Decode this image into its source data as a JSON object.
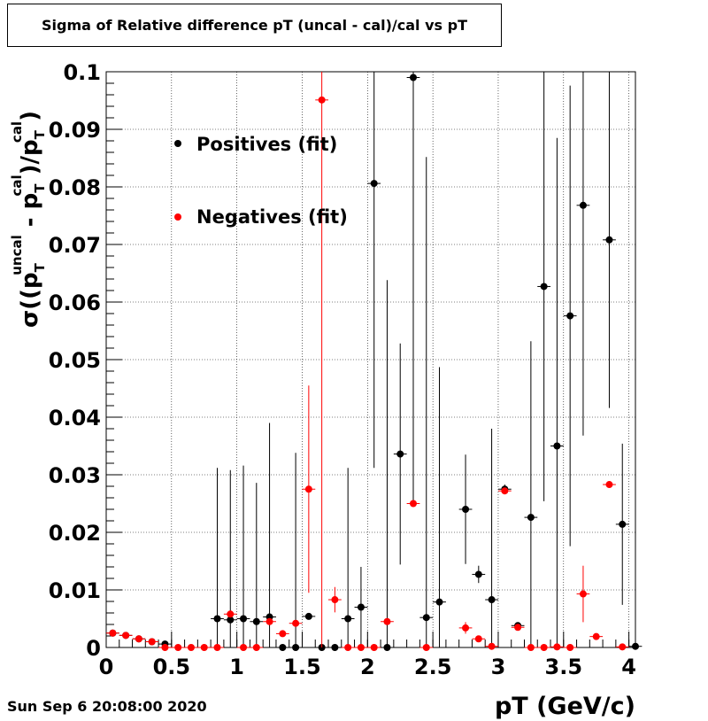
{
  "title": "Sigma of Relative difference pT (uncal - cal)/cal vs pT",
  "timestamp": "Sun Sep  6 20:08:00 2020",
  "colors": {
    "positives": "#000000",
    "negatives": "#ff0000",
    "axis": "#000000",
    "grid": "#000000"
  },
  "chart_data": {
    "type": "scatter",
    "title": "Sigma of Relative difference pT (uncal - cal)/cal vs pT",
    "xlabel": "pT (GeV/c)",
    "ylabel_parts": {
      "sigma": "σ((p",
      "uncal": "uncal",
      "sub1": "T",
      "minus": " - p",
      "cal1": "cal",
      "sub2": "T",
      "div": ")/p",
      "cal2": "cal",
      "sub3": "T",
      "close": ")"
    },
    "xlim": [
      0,
      4.05
    ],
    "ylim": [
      0,
      0.1
    ],
    "grid": true,
    "legend_position": "top-left",
    "x_ticks": [
      {
        "value": 0,
        "label": "0"
      },
      {
        "value": 0.5,
        "label": "0.5"
      },
      {
        "value": 1,
        "label": "1"
      },
      {
        "value": 1.5,
        "label": "1.5"
      },
      {
        "value": 2,
        "label": "2"
      },
      {
        "value": 2.5,
        "label": "2.5"
      },
      {
        "value": 3,
        "label": "3"
      },
      {
        "value": 3.5,
        "label": "3.5"
      },
      {
        "value": 4,
        "label": "4"
      }
    ],
    "y_ticks": [
      {
        "value": 0,
        "label": "0"
      },
      {
        "value": 0.01,
        "label": "0.01"
      },
      {
        "value": 0.02,
        "label": "0.02"
      },
      {
        "value": 0.03,
        "label": "0.03"
      },
      {
        "value": 0.04,
        "label": "0.04"
      },
      {
        "value": 0.05,
        "label": "0.05"
      },
      {
        "value": 0.06,
        "label": "0.06"
      },
      {
        "value": 0.07,
        "label": "0.07"
      },
      {
        "value": 0.08,
        "label": "0.08"
      },
      {
        "value": 0.09,
        "label": "0.09"
      },
      {
        "value": 0.1,
        "label": "0.1"
      }
    ],
    "series": [
      {
        "name": "Positives (fit)",
        "color": "#000000",
        "points": [
          {
            "x": 0.05,
            "y": 0.0025,
            "err": 0.0003
          },
          {
            "x": 0.15,
            "y": 0.0021,
            "err": 0.0003
          },
          {
            "x": 0.25,
            "y": 0.0015,
            "err": 0.0003
          },
          {
            "x": 0.35,
            "y": 0.001,
            "err": 0.0003
          },
          {
            "x": 0.45,
            "y": 0.0006,
            "err": 0.0003
          },
          {
            "x": 0.85,
            "y": 0.005,
            "err": 0.0262
          },
          {
            "x": 0.95,
            "y": 0.0048,
            "err": 0.026
          },
          {
            "x": 1.05,
            "y": 0.005,
            "err": 0.0266
          },
          {
            "x": 1.15,
            "y": 0.0045,
            "err": 0.0241
          },
          {
            "x": 1.25,
            "y": 0.0053,
            "err": 0.0337
          },
          {
            "x": 1.35,
            "y": 0.0,
            "err": 0.0
          },
          {
            "x": 1.45,
            "y": 0.0,
            "err": 0.0338
          },
          {
            "x": 1.55,
            "y": 0.0054,
            "err": 0.0
          },
          {
            "x": 1.65,
            "y": 0.0,
            "err": 0.0
          },
          {
            "x": 1.75,
            "y": 0.0,
            "err": 0.0
          },
          {
            "x": 1.85,
            "y": 0.005,
            "err": 0.0262
          },
          {
            "x": 1.95,
            "y": 0.007,
            "err": 0.007
          },
          {
            "x": 2.05,
            "y": 0.0806,
            "err": 0.0494
          },
          {
            "x": 2.15,
            "y": 0.0,
            "err": 0.0638
          },
          {
            "x": 2.25,
            "y": 0.0336,
            "err": 0.0192
          },
          {
            "x": 2.35,
            "y": 0.099,
            "err": 0.074
          },
          {
            "x": 2.45,
            "y": 0.0052,
            "err": 0.08
          },
          {
            "x": 2.55,
            "y": 0.0079,
            "err": 0.0408
          },
          {
            "x": 2.75,
            "y": 0.024,
            "err": 0.0095
          },
          {
            "x": 2.85,
            "y": 0.0127,
            "err": 0.0015
          },
          {
            "x": 2.95,
            "y": 0.0083,
            "err": 0.0297
          },
          {
            "x": 3.05,
            "y": 0.0275,
            "err": 0.0008
          },
          {
            "x": 3.15,
            "y": 0.0038,
            "err": 0.0
          },
          {
            "x": 3.25,
            "y": 0.0226,
            "err": 0.0306
          },
          {
            "x": 3.35,
            "y": 0.0627,
            "err": 0.0373
          },
          {
            "x": 3.45,
            "y": 0.035,
            "err": 0.0535
          },
          {
            "x": 3.55,
            "y": 0.0576,
            "err": 0.04
          },
          {
            "x": 3.65,
            "y": 0.0768,
            "err": 0.04
          },
          {
            "x": 3.85,
            "y": 0.0708,
            "err": 0.0292
          },
          {
            "x": 3.95,
            "y": 0.0214,
            "err": 0.014
          },
          {
            "x": 4.05,
            "y": 0.0002,
            "err": 0.0
          }
        ]
      },
      {
        "name": "Negatives (fit)",
        "color": "#ff0000",
        "points": [
          {
            "x": 0.05,
            "y": 0.0025,
            "err": 0.0003
          },
          {
            "x": 0.15,
            "y": 0.0021,
            "err": 0.0003
          },
          {
            "x": 0.25,
            "y": 0.0015,
            "err": 0.0003
          },
          {
            "x": 0.35,
            "y": 0.001,
            "err": 0.0003
          },
          {
            "x": 0.45,
            "y": 0.0,
            "err": 0.0
          },
          {
            "x": 0.55,
            "y": 0.0,
            "err": 0.0
          },
          {
            "x": 0.65,
            "y": 0.0,
            "err": 0.0
          },
          {
            "x": 0.75,
            "y": 0.0,
            "err": 0.0
          },
          {
            "x": 0.85,
            "y": 0.0,
            "err": 0.0
          },
          {
            "x": 0.95,
            "y": 0.0058,
            "err": 0.0
          },
          {
            "x": 1.05,
            "y": 0.0,
            "err": 0.0
          },
          {
            "x": 1.15,
            "y": 0.0,
            "err": 0.0
          },
          {
            "x": 1.25,
            "y": 0.0045,
            "err": 0.0
          },
          {
            "x": 1.35,
            "y": 0.0024,
            "err": 0.0
          },
          {
            "x": 1.45,
            "y": 0.0042,
            "err": 0.0
          },
          {
            "x": 1.55,
            "y": 0.0275,
            "err": 0.018
          },
          {
            "x": 1.65,
            "y": 0.0951,
            "err": 0.0951
          },
          {
            "x": 1.75,
            "y": 0.0083,
            "err": 0.0022
          },
          {
            "x": 1.85,
            "y": 0.0,
            "err": 0.0
          },
          {
            "x": 1.95,
            "y": 0.0,
            "err": 0.0
          },
          {
            "x": 2.05,
            "y": 0.0,
            "err": 0.0
          },
          {
            "x": 2.15,
            "y": 0.0045,
            "err": 0.0
          },
          {
            "x": 2.35,
            "y": 0.025,
            "err": 0.0
          },
          {
            "x": 2.45,
            "y": 0.0,
            "err": 0.0
          },
          {
            "x": 2.75,
            "y": 0.0034,
            "err": 0.001
          },
          {
            "x": 2.85,
            "y": 0.0015,
            "err": 0.0
          },
          {
            "x": 2.95,
            "y": 0.0002,
            "err": 0.0
          },
          {
            "x": 3.05,
            "y": 0.0272,
            "err": 0.0
          },
          {
            "x": 3.15,
            "y": 0.0035,
            "err": 0.0
          },
          {
            "x": 3.25,
            "y": 0.0,
            "err": 0.0
          },
          {
            "x": 3.35,
            "y": 0.0,
            "err": 0.0
          },
          {
            "x": 3.45,
            "y": 0.0001,
            "err": 0.0
          },
          {
            "x": 3.55,
            "y": 0.0,
            "err": 0.0
          },
          {
            "x": 3.65,
            "y": 0.0093,
            "err": 0.0049
          },
          {
            "x": 3.75,
            "y": 0.0019,
            "err": 0.0
          },
          {
            "x": 3.85,
            "y": 0.0283,
            "err": 0.0
          },
          {
            "x": 3.95,
            "y": 0.0001,
            "err": 0.0
          }
        ]
      }
    ]
  }
}
